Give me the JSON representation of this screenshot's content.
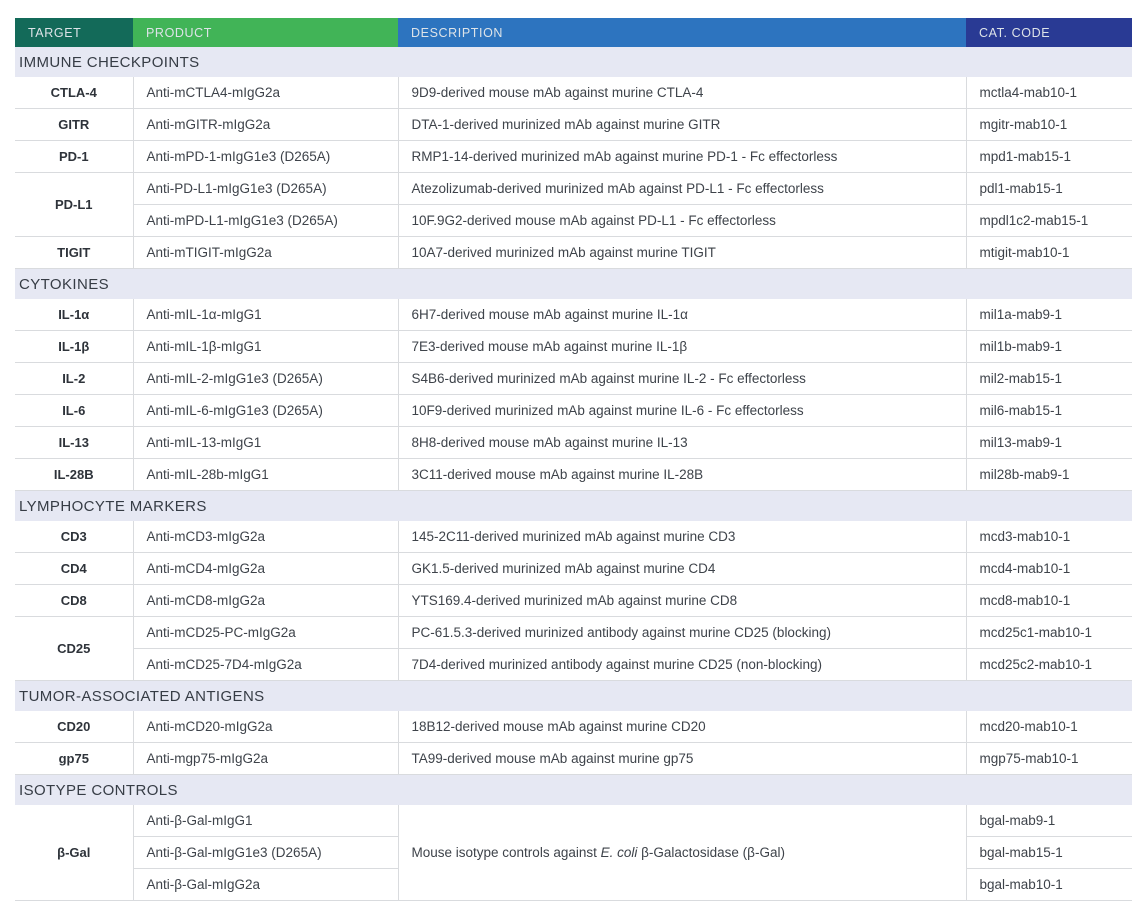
{
  "columns": [
    {
      "key": "target",
      "label": "TARGET",
      "color": "#136a59"
    },
    {
      "key": "product",
      "label": "PRODUCT",
      "color": "#41b457"
    },
    {
      "key": "description",
      "label": "DESCRIPTION",
      "color": "#2d74bf"
    },
    {
      "key": "cat_code",
      "label": "CAT. CODE",
      "color": "#293a94"
    }
  ],
  "colors": {
    "section_background": "#e6e8f3",
    "row_border": "#d9dbde",
    "header_text": "#dde3e8",
    "body_text": "#3e434a"
  },
  "sections": [
    {
      "title": "IMMUNE CHECKPOINTS",
      "groups": [
        {
          "target": "CTLA-4",
          "rows": [
            {
              "product": "Anti-mCTLA4-mIgG2a",
              "description": "9D9-derived mouse mAb against murine CTLA-4",
              "cat_code": "mctla4-mab10-1"
            }
          ]
        },
        {
          "target": "GITR",
          "rows": [
            {
              "product": "Anti-mGITR-mIgG2a",
              "description": "DTA-1-derived murinized mAb against murine GITR",
              "cat_code": "mgitr-mab10-1"
            }
          ]
        },
        {
          "target": "PD-1",
          "rows": [
            {
              "product": "Anti-mPD-1-mIgG1e3 (D265A)",
              "description": "RMP1-14-derived murinized mAb against murine PD-1 - Fc effectorless",
              "cat_code": "mpd1-mab15-1"
            }
          ]
        },
        {
          "target": "PD-L1",
          "rows": [
            {
              "product": "Anti-PD-L1-mIgG1e3 (D265A)",
              "description": "Atezolizumab-derived murinized mAb against PD-L1 - Fc effectorless",
              "cat_code": "pdl1-mab15-1"
            },
            {
              "product": "Anti-mPD-L1-mIgG1e3 (D265A)",
              "description": "10F.9G2-derived mouse mAb against PD-L1 - Fc effectorless",
              "cat_code": "mpdl1c2-mab15-1"
            }
          ]
        },
        {
          "target": "TIGIT",
          "rows": [
            {
              "product": "Anti-mTIGIT-mIgG2a",
              "description": "10A7-derived murinized mAb against murine TIGIT",
              "cat_code": "mtigit-mab10-1"
            }
          ]
        }
      ]
    },
    {
      "title": "CYTOKINES",
      "groups": [
        {
          "target": "IL-1α",
          "rows": [
            {
              "product": "Anti-mIL-1α-mIgG1",
              "description": "6H7-derived mouse mAb against murine IL-1α",
              "cat_code": "mil1a-mab9-1"
            }
          ]
        },
        {
          "target": "IL-1β",
          "rows": [
            {
              "product": "Anti-mIL-1β-mIgG1",
              "description": "7E3-derived mouse mAb against murine IL-1β",
              "cat_code": "mil1b-mab9-1"
            }
          ]
        },
        {
          "target": "IL-2",
          "rows": [
            {
              "product": "Anti-mIL-2-mIgG1e3 (D265A)",
              "description": "S4B6-derived murinized mAb against murine IL-2 - Fc effectorless",
              "cat_code": "mil2-mab15-1"
            }
          ]
        },
        {
          "target": "IL-6",
          "rows": [
            {
              "product": "Anti-mIL-6-mIgG1e3 (D265A)",
              "description": "10F9-derived murinized mAb against murine IL-6 - Fc effectorless",
              "cat_code": "mil6-mab15-1"
            }
          ]
        },
        {
          "target": "IL-13",
          "rows": [
            {
              "product": "Anti-mIL-13-mIgG1",
              "description": "8H8-derived mouse mAb against murine IL-13",
              "cat_code": "mil13-mab9-1"
            }
          ]
        },
        {
          "target": "IL-28B",
          "rows": [
            {
              "product": "Anti-mIL-28b-mIgG1",
              "description": "3C11-derived mouse mAb against murine IL-28B",
              "cat_code": "mil28b-mab9-1"
            }
          ]
        }
      ]
    },
    {
      "title": "LYMPHOCYTE MARKERS",
      "groups": [
        {
          "target": "CD3",
          "rows": [
            {
              "product": "Anti-mCD3-mIgG2a",
              "description": "145-2C11-derived murinized mAb against murine CD3",
              "cat_code": "mcd3-mab10-1"
            }
          ]
        },
        {
          "target": "CD4",
          "rows": [
            {
              "product": "Anti-mCD4-mIgG2a",
              "description": "GK1.5-derived murinized mAb against murine CD4",
              "cat_code": "mcd4-mab10-1"
            }
          ]
        },
        {
          "target": "CD8",
          "rows": [
            {
              "product": "Anti-mCD8-mIgG2a",
              "description": "YTS169.4-derived murinized mAb against murine CD8",
              "cat_code": "mcd8-mab10-1"
            }
          ]
        },
        {
          "target": "CD25",
          "rows": [
            {
              "product": "Anti-mCD25-PC-mIgG2a",
              "description": "PC-61.5.3-derived murinized antibody against murine CD25 (blocking)",
              "cat_code": "mcd25c1-mab10-1"
            },
            {
              "product": "Anti-mCD25-7D4-mIgG2a",
              "description": "7D4-derived murinized antibody against murine CD25 (non-blocking)",
              "cat_code": "mcd25c2-mab10-1"
            }
          ]
        }
      ]
    },
    {
      "title": "TUMOR-ASSOCIATED ANTIGENS",
      "groups": [
        {
          "target": "CD20",
          "rows": [
            {
              "product": "Anti-mCD20-mIgG2a",
              "description": "18B12-derived mouse mAb against murine CD20",
              "cat_code": "mcd20-mab10-1"
            }
          ]
        },
        {
          "target": "gp75",
          "rows": [
            {
              "product": "Anti-mgp75-mIgG2a",
              "description": "TA99-derived mouse mAb against murine gp75",
              "cat_code": "mgp75-mab10-1"
            }
          ]
        }
      ]
    },
    {
      "title": "ISOTYPE CONTROLS",
      "groups": [
        {
          "target": "β-Gal",
          "merged_description": {
            "prefix": "Mouse isotype controls against ",
            "italic": "E. coli",
            "suffix": " β-Galactosidase (β-Gal)"
          },
          "rows": [
            {
              "product": "Anti-β-Gal-mIgG1",
              "cat_code": "bgal-mab9-1"
            },
            {
              "product": "Anti-β-Gal-mIgG1e3 (D265A)",
              "cat_code": "bgal-mab15-1"
            },
            {
              "product": "Anti-β-Gal-mIgG2a",
              "cat_code": "bgal-mab10-1"
            }
          ]
        }
      ]
    }
  ]
}
